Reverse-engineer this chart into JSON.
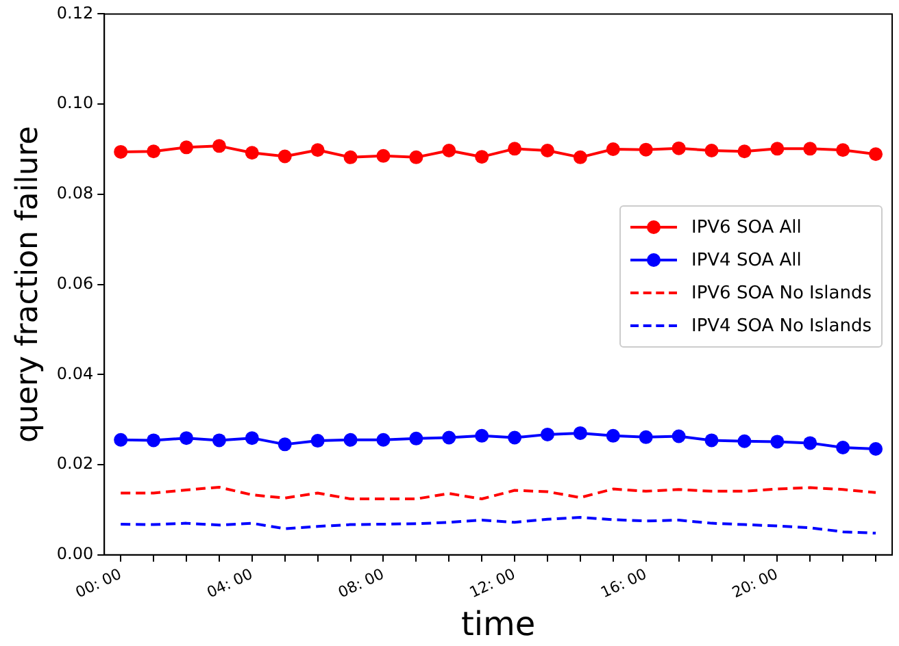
{
  "chart_data": {
    "type": "line",
    "xlabel": "time",
    "ylabel": "query fraction failure",
    "categories": [
      "00: 00",
      null,
      null,
      null,
      "04: 00",
      null,
      null,
      null,
      "08: 00",
      null,
      null,
      null,
      "12: 00",
      null,
      null,
      null,
      "16: 00",
      null,
      null,
      null,
      "20: 00",
      null,
      null,
      null
    ],
    "ylim": [
      0,
      0.12
    ],
    "yticks": [
      {
        "value": 0,
        "label": "0.00"
      },
      {
        "value": 0.02,
        "label": "0.02"
      },
      {
        "value": 0.04,
        "label": "0.04"
      },
      {
        "value": 0.06,
        "label": "0.06"
      },
      {
        "value": 0.08,
        "label": "0.08"
      },
      {
        "value": 0.1,
        "label": "0.10"
      },
      {
        "value": 0.12,
        "label": "0.12"
      }
    ],
    "grid": false,
    "legend": "right",
    "series": [
      {
        "name": "IPV6 SOA All",
        "color": "#ff0000",
        "marker": "circle",
        "line_style": "solid",
        "values": [
          0.0894,
          0.0895,
          0.0904,
          0.0907,
          0.0892,
          0.0884,
          0.0898,
          0.0882,
          0.0885,
          0.0882,
          0.0897,
          0.0883,
          0.0901,
          0.0897,
          0.0882,
          0.09,
          0.0899,
          0.0902,
          0.0897,
          0.0895,
          0.0901,
          0.0901,
          0.0898,
          0.0889
        ]
      },
      {
        "name": "IPV4 SOA All",
        "color": "#0000ff",
        "marker": "circle",
        "line_style": "solid",
        "values": [
          0.0255,
          0.0254,
          0.0259,
          0.0254,
          0.0259,
          0.0245,
          0.0253,
          0.0255,
          0.0255,
          0.0258,
          0.026,
          0.0264,
          0.026,
          0.0267,
          0.027,
          0.0264,
          0.0261,
          0.0263,
          0.0254,
          0.0252,
          0.0251,
          0.0248,
          0.0238,
          0.0235
        ]
      },
      {
        "name": "IPV6 SOA No Islands",
        "color": "#ff0000",
        "marker": "none",
        "line_style": "dashed",
        "values": [
          0.0137,
          0.0137,
          0.0144,
          0.015,
          0.0133,
          0.0126,
          0.0137,
          0.0124,
          0.0124,
          0.0124,
          0.0136,
          0.0124,
          0.0143,
          0.014,
          0.0127,
          0.0146,
          0.0141,
          0.0145,
          0.0141,
          0.0141,
          0.0146,
          0.0149,
          0.0145,
          0.0138
        ]
      },
      {
        "name": "IPV4 SOA No Islands",
        "color": "#0000ff",
        "marker": "none",
        "line_style": "dashed",
        "values": [
          0.0068,
          0.0067,
          0.007,
          0.0066,
          0.007,
          0.0058,
          0.0063,
          0.0067,
          0.0068,
          0.0069,
          0.0072,
          0.0077,
          0.0072,
          0.0079,
          0.0083,
          0.0078,
          0.0075,
          0.0077,
          0.007,
          0.0067,
          0.0064,
          0.006,
          0.0051,
          0.0048
        ]
      }
    ]
  }
}
